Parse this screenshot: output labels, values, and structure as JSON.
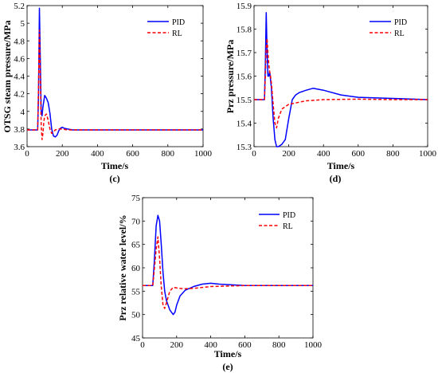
{
  "chart_data": [
    {
      "type": "line",
      "panel_label": "(c)",
      "xlabel": "Time/s",
      "ylabel": "OTSG steam pressure/MPa",
      "xlim": [
        0,
        1000
      ],
      "ylim": [
        3.6,
        5.2
      ],
      "xticks": [
        "0",
        "200",
        "400",
        "600",
        "800",
        "1000"
      ],
      "yticks": [
        "3.6",
        "3.8",
        "4",
        "4.2",
        "4.4",
        "4.6",
        "4.8",
        "5",
        "5.2"
      ],
      "legend_position": "top-right",
      "series": [
        {
          "name": "PID",
          "color": "#0000ff",
          "dash": "solid",
          "x": [
            0,
            60,
            65,
            70,
            75,
            80,
            85,
            90,
            100,
            110,
            120,
            130,
            140,
            150,
            160,
            170,
            180,
            190,
            200,
            210,
            230,
            260,
            300,
            400,
            600,
            800,
            1000
          ],
          "y": [
            3.79,
            3.79,
            4.2,
            5.17,
            4.6,
            4.0,
            3.95,
            4.05,
            4.18,
            4.15,
            4.1,
            3.98,
            3.8,
            3.72,
            3.71,
            3.73,
            3.78,
            3.81,
            3.82,
            3.81,
            3.8,
            3.79,
            3.79,
            3.79,
            3.79,
            3.79,
            3.79
          ]
        },
        {
          "name": "RL",
          "color": "#ff0000",
          "dash": "dashed",
          "x": [
            0,
            60,
            65,
            70,
            75,
            80,
            85,
            90,
            95,
            100,
            110,
            120,
            130,
            140,
            150,
            160,
            180,
            200,
            230,
            300,
            400,
            600,
            800,
            1000
          ],
          "y": [
            3.79,
            3.79,
            4.3,
            4.92,
            4.4,
            3.85,
            3.68,
            3.75,
            3.88,
            3.95,
            3.97,
            3.9,
            3.8,
            3.75,
            3.77,
            3.79,
            3.8,
            3.8,
            3.79,
            3.79,
            3.79,
            3.79,
            3.79,
            3.79
          ]
        }
      ]
    },
    {
      "type": "line",
      "panel_label": "(d)",
      "xlabel": "Time/s",
      "ylabel": "Prz pressure/MPa",
      "xlim": [
        0,
        1000
      ],
      "ylim": [
        15.3,
        15.9
      ],
      "xticks": [
        "0",
        "200",
        "400",
        "600",
        "800",
        "1000"
      ],
      "yticks": [
        "15.3",
        "15.4",
        "15.5",
        "15.6",
        "15.7",
        "15.8",
        "15.9"
      ],
      "legend_position": "top-right",
      "series": [
        {
          "name": "PID",
          "color": "#0000ff",
          "dash": "solid",
          "x": [
            0,
            60,
            65,
            70,
            75,
            80,
            85,
            90,
            100,
            110,
            120,
            130,
            140,
            160,
            180,
            200,
            220,
            240,
            260,
            300,
            340,
            400,
            500,
            600,
            800,
            1000
          ],
          "y": [
            15.5,
            15.5,
            15.65,
            15.87,
            15.7,
            15.6,
            15.6,
            15.62,
            15.55,
            15.42,
            15.33,
            15.3,
            15.3,
            15.31,
            15.33,
            15.42,
            15.5,
            15.52,
            15.53,
            15.54,
            15.548,
            15.54,
            15.52,
            15.51,
            15.505,
            15.5
          ]
        },
        {
          "name": "RL",
          "color": "#ff0000",
          "dash": "dashed",
          "x": [
            0,
            60,
            65,
            70,
            75,
            80,
            85,
            90,
            95,
            100,
            110,
            120,
            130,
            140,
            160,
            200,
            300,
            400,
            600,
            800,
            1000
          ],
          "y": [
            15.5,
            15.5,
            15.6,
            15.72,
            15.76,
            15.7,
            15.65,
            15.62,
            15.6,
            15.57,
            15.48,
            15.4,
            15.38,
            15.42,
            15.46,
            15.48,
            15.495,
            15.5,
            15.502,
            15.5,
            15.5
          ]
        }
      ]
    },
    {
      "type": "line",
      "panel_label": "(e)",
      "xlabel": "Time/s",
      "ylabel": "Prz relative water level/%",
      "xlim": [
        0,
        1000
      ],
      "ylim": [
        45,
        75
      ],
      "xticks": [
        "0",
        "200",
        "400",
        "600",
        "800",
        "1000"
      ],
      "yticks": [
        "45",
        "50",
        "55",
        "60",
        "65",
        "70",
        "75"
      ],
      "legend_position": "top-right",
      "series": [
        {
          "name": "PID",
          "color": "#0000ff",
          "dash": "solid",
          "x": [
            0,
            60,
            70,
            80,
            90,
            100,
            110,
            120,
            130,
            140,
            160,
            180,
            190,
            200,
            220,
            250,
            300,
            350,
            400,
            450,
            600,
            800,
            1000
          ],
          "y": [
            56.2,
            56.2,
            62,
            69,
            71.2,
            70,
            65,
            59,
            55,
            53,
            51,
            50,
            50.5,
            52,
            54,
            55.2,
            56,
            56.5,
            56.7,
            56.5,
            56.2,
            56.2,
            56.2
          ]
        },
        {
          "name": "RL",
          "color": "#ff0000",
          "dash": "dashed",
          "x": [
            0,
            60,
            70,
            80,
            90,
            100,
            110,
            120,
            130,
            140,
            160,
            180,
            200,
            240,
            300,
            400,
            600,
            800,
            1000
          ],
          "y": [
            56.2,
            56.2,
            60,
            64,
            66.6,
            62,
            56,
            52,
            51.3,
            52.5,
            55,
            55.8,
            55.7,
            55.5,
            55.6,
            56,
            56.2,
            56.2,
            56.2
          ]
        }
      ]
    }
  ]
}
